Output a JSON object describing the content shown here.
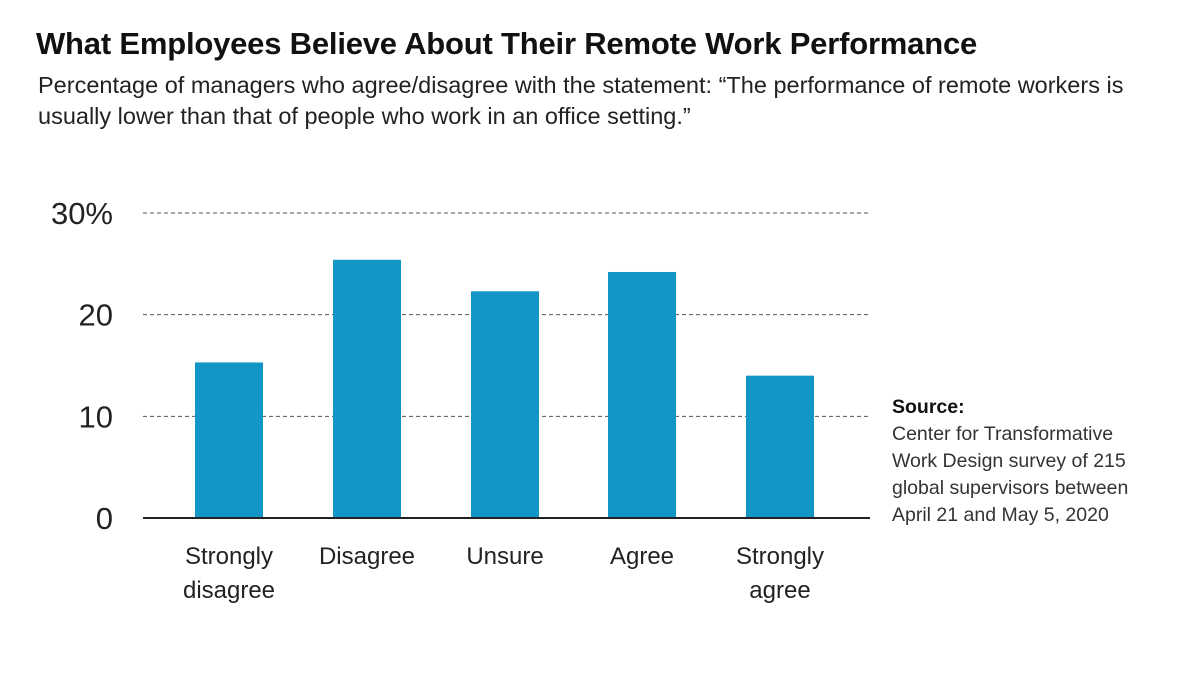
{
  "header": {
    "title": "What Employees Believe About Their Remote Work Performance",
    "subtitle": "Percentage of managers who agree/disagree with the statement: “The performance of remote workers is usually lower than that of people who work in an office setting.”"
  },
  "source": {
    "label": "Source:",
    "text": "Center for Transformative\nWork Design survey of 215\nglobal supervisors between\nApril 21 and May 5, 2020"
  },
  "chart_data": {
    "type": "bar",
    "title": "What Employees Believe About Their Remote Work Performance",
    "subtitle": "Percentage of managers who agree/disagree with the statement: “The performance of remote workers is usually lower than that of people who work in an office setting.”",
    "categories": [
      "Strongly disagree",
      "Disagree",
      "Unsure",
      "Agree",
      "Strongly agree"
    ],
    "category_label_lines": [
      [
        "Strongly",
        "disagree"
      ],
      [
        "Disagree"
      ],
      [
        "Unsure"
      ],
      [
        "Agree"
      ],
      [
        "Strongly",
        "agree"
      ]
    ],
    "values": [
      15.3,
      25.4,
      22.3,
      24.2,
      14.0
    ],
    "ylim": [
      0,
      30
    ],
    "yticks": [
      0,
      10,
      20,
      30
    ],
    "ytick_labels": [
      "0",
      "10",
      "20",
      "30%"
    ],
    "xlabel": "",
    "ylabel": "",
    "grid": "horizontal-dashed",
    "legend": "none",
    "colors": {
      "bar": "#1196c6",
      "grid": "#555555",
      "axis": "#222222",
      "text": "#222222"
    }
  }
}
